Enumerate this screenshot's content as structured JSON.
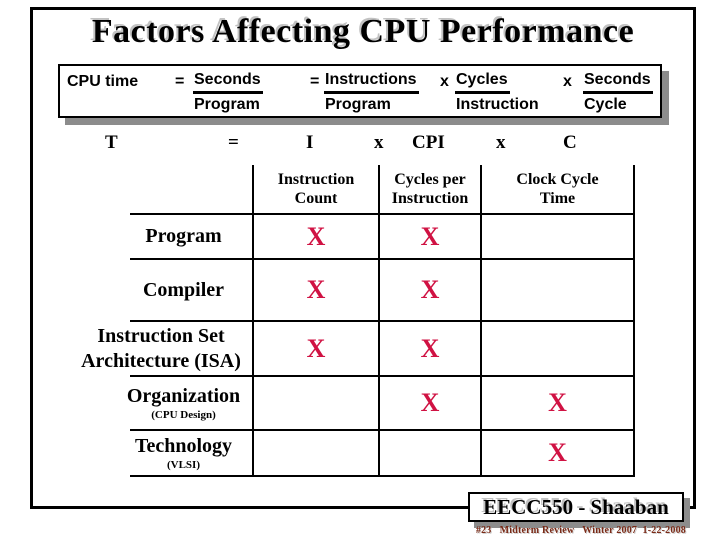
{
  "title": "Factors Affecting CPU Performance",
  "formula": {
    "lhs": "CPU time",
    "ops": [
      "=",
      "=",
      "x",
      "x"
    ],
    "fracs": [
      {
        "num": "Seconds",
        "den": "Program"
      },
      {
        "num": "Instructions",
        "den": "Program"
      },
      {
        "num": "Cycles",
        "den": "Instruction"
      },
      {
        "num": "Seconds",
        "den": "Cycle"
      }
    ]
  },
  "symbolic": [
    "T",
    "=",
    "I",
    "x",
    "CPI",
    "x",
    "C"
  ],
  "table": {
    "headers": [
      [
        "Instruction",
        "Count"
      ],
      [
        "Cycles per",
        "Instruction"
      ],
      [
        "Clock Cycle",
        "Time"
      ]
    ],
    "rows": [
      {
        "lines": [
          "Program"
        ],
        "sub": "",
        "marks": [
          "X",
          "X",
          ""
        ]
      },
      {
        "lines": [
          "Compiler"
        ],
        "sub": "",
        "marks": [
          "X",
          "X",
          ""
        ]
      },
      {
        "lines": [
          "Instruction Set",
          "Architecture (ISA)"
        ],
        "sub": "",
        "marks": [
          "X",
          "X",
          ""
        ]
      },
      {
        "lines": [
          "Organization"
        ],
        "sub": "(CPU Design)",
        "marks": [
          "",
          "X",
          "X"
        ]
      },
      {
        "lines": [
          "Technology"
        ],
        "sub": "(VLSI)",
        "marks": [
          "",
          "",
          "X"
        ]
      }
    ]
  },
  "footer": {
    "course": "EECC550 - Shaaban",
    "meta": "#23   Midterm Review   Winter 2007  1-22-2008"
  },
  "colors": {
    "mark": "#D01243",
    "meta_text": "#7A2A17",
    "shadow": "#8C8C8C"
  }
}
